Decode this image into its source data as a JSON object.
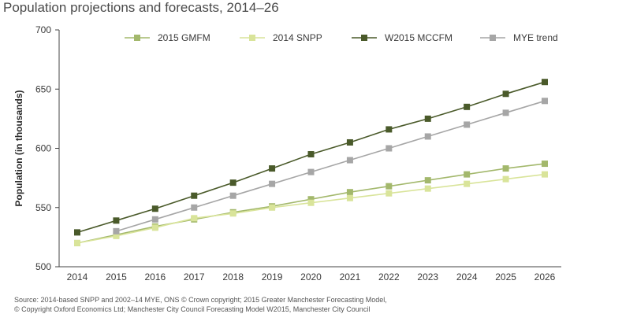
{
  "chart_data": {
    "type": "line",
    "title": "Population projections and forecasts, 2014–26",
    "xlabel": "",
    "ylabel": "Population (in thousands)",
    "ylim": [
      500,
      700
    ],
    "yticks": [
      500,
      550,
      600,
      650,
      700
    ],
    "categories": [
      "2014",
      "2015",
      "2016",
      "2017",
      "2018",
      "2019",
      "2020",
      "2021",
      "2022",
      "2023",
      "2024",
      "2025",
      "2026"
    ],
    "legend_position": "top",
    "series": [
      {
        "name": "2015 GMFM",
        "color": "#a3b86c",
        "values": [
          520,
          527,
          534,
          540,
          546,
          551,
          557,
          563,
          568,
          573,
          578,
          583,
          587
        ]
      },
      {
        "name": "2014 SNPP",
        "color": "#d9e49a",
        "values": [
          520,
          526,
          533,
          541,
          545,
          550,
          554,
          558,
          562,
          566,
          570,
          574,
          578
        ]
      },
      {
        "name": "W2015 MCCFM",
        "color": "#4a5a2a",
        "values": [
          529,
          539,
          549,
          560,
          571,
          583,
          595,
          605,
          616,
          625,
          635,
          646,
          656
        ]
      },
      {
        "name": "MYE trend",
        "color": "#a6a6a6",
        "values": [
          null,
          530,
          540,
          550,
          560,
          570,
          580,
          590,
          600,
          610,
          620,
          630,
          640
        ]
      }
    ]
  },
  "source": {
    "line1": "Source: 2014-based SNPP and 2002–14 MYE, ONS © Crown copyright; 2015 Greater Manchester Forecasting Model,",
    "line2": "© Copyright Oxford Economics Ltd; Manchester City Council Forecasting Model W2015, Manchester City Council"
  }
}
